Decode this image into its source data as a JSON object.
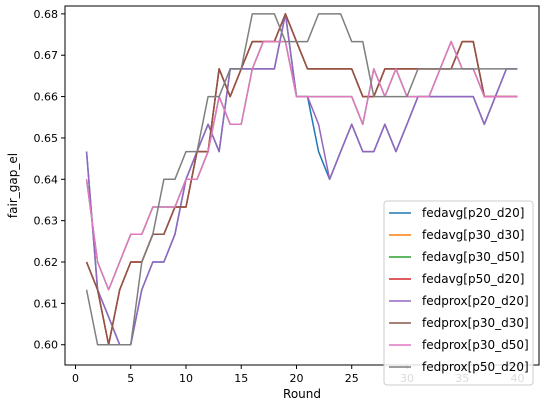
{
  "chart_data": {
    "type": "line",
    "xlabel": "Round",
    "ylabel": "fair_gap_el",
    "xlim": [
      -0.95,
      41.95
    ],
    "ylim": [
      0.5951,
      0.6819
    ],
    "xticks": [
      0,
      5,
      10,
      15,
      20,
      25,
      30,
      35,
      40
    ],
    "yticks": [
      0.6,
      0.61,
      0.62,
      0.63,
      0.64,
      0.65,
      0.66,
      0.67,
      0.68
    ],
    "ytick_labels": [
      "0.60",
      "0.61",
      "0.62",
      "0.63",
      "0.64",
      "0.65",
      "0.66",
      "0.67",
      "0.68"
    ],
    "grid": false,
    "legend_position": "lower-right",
    "x": [
      1,
      2,
      3,
      4,
      5,
      6,
      7,
      8,
      9,
      10,
      11,
      12,
      13,
      14,
      15,
      16,
      17,
      18,
      19,
      20,
      21,
      22,
      23,
      24,
      25,
      26,
      27,
      28,
      29,
      30,
      31,
      32,
      33,
      34,
      35,
      36,
      37,
      38,
      39,
      40
    ],
    "series": [
      {
        "name": "fedavg[p20_d20]",
        "color": "#1f77b4",
        "values": [
          0.6467,
          0.6133,
          0.6067,
          0.6,
          0.6,
          0.6133,
          0.62,
          0.62,
          0.6267,
          0.64,
          0.6467,
          0.6533,
          0.6467,
          0.6667,
          0.6667,
          0.6667,
          0.6667,
          0.6667,
          0.68,
          0.66,
          0.66,
          0.6467,
          0.64,
          0.6467,
          0.6533,
          0.6467,
          0.6467,
          0.6533,
          0.6467,
          0.6533,
          0.66,
          0.66,
          0.66,
          0.66,
          0.66,
          0.66,
          0.6533,
          0.66,
          0.6667,
          0.6667
        ]
      },
      {
        "name": "fedavg[p30_d30]",
        "color": "#ff7f0e",
        "values": [
          0.62,
          0.6133,
          0.6,
          0.6133,
          0.62,
          0.62,
          0.6267,
          0.6267,
          0.6333,
          0.6333,
          0.6467,
          0.6467,
          0.6667,
          0.66,
          0.6667,
          0.6733,
          0.6733,
          0.6733,
          0.68,
          0.6733,
          0.6667,
          0.6667,
          0.6667,
          0.6667,
          0.6667,
          0.66,
          0.66,
          0.6667,
          0.6667,
          0.6667,
          0.6667,
          0.6667,
          0.6667,
          0.6667,
          0.6733,
          0.6733,
          0.66,
          0.66,
          0.66,
          0.66
        ]
      },
      {
        "name": "fedavg[p30_d50]",
        "color": "#2ca02c",
        "values": [
          0.64,
          0.62,
          0.6133,
          0.62,
          0.6267,
          0.6267,
          0.6333,
          0.6333,
          0.6333,
          0.64,
          0.64,
          0.6467,
          0.66,
          0.6533,
          0.6533,
          0.6667,
          0.6733,
          0.6733,
          0.6733,
          0.66,
          0.66,
          0.66,
          0.66,
          0.66,
          0.66,
          0.6533,
          0.6667,
          0.66,
          0.6667,
          0.66,
          0.66,
          0.66,
          0.6667,
          0.6733,
          0.6667,
          0.6667,
          0.66,
          0.66,
          0.66,
          0.66
        ]
      },
      {
        "name": "fedavg[p50_d20]",
        "color": "#d62728",
        "values": [
          0.62,
          0.6133,
          0.6,
          0.6133,
          0.62,
          0.62,
          0.6267,
          0.6267,
          0.6333,
          0.6333,
          0.6467,
          0.6467,
          0.6667,
          0.66,
          0.6667,
          0.6733,
          0.6733,
          0.6733,
          0.68,
          0.6733,
          0.6667,
          0.6667,
          0.6667,
          0.6667,
          0.6667,
          0.66,
          0.66,
          0.6667,
          0.6667,
          0.6667,
          0.6667,
          0.6667,
          0.6667,
          0.6667,
          0.6733,
          0.6733,
          0.66,
          0.66,
          0.66,
          0.66
        ]
      },
      {
        "name": "fedprox[p20_d20]",
        "color": "#9467bd",
        "values": [
          0.6467,
          0.6133,
          0.6067,
          0.6,
          0.6,
          0.6133,
          0.62,
          0.62,
          0.6267,
          0.64,
          0.6467,
          0.6533,
          0.6467,
          0.6667,
          0.6667,
          0.6667,
          0.6667,
          0.6667,
          0.68,
          0.66,
          0.66,
          0.6533,
          0.64,
          0.6467,
          0.6533,
          0.6467,
          0.6467,
          0.6533,
          0.6467,
          0.6533,
          0.66,
          0.66,
          0.66,
          0.66,
          0.66,
          0.66,
          0.6533,
          0.66,
          0.6667,
          0.6667
        ]
      },
      {
        "name": "fedprox[p30_d30]",
        "color": "#8c564b",
        "values": [
          0.62,
          0.6133,
          0.6,
          0.6133,
          0.62,
          0.62,
          0.6267,
          0.6267,
          0.6333,
          0.6333,
          0.6467,
          0.6467,
          0.6667,
          0.66,
          0.6667,
          0.6733,
          0.6733,
          0.6733,
          0.68,
          0.6733,
          0.6667,
          0.6667,
          0.6667,
          0.6667,
          0.6667,
          0.66,
          0.66,
          0.6667,
          0.6667,
          0.6667,
          0.6667,
          0.6667,
          0.6667,
          0.6667,
          0.6733,
          0.6733,
          0.66,
          0.66,
          0.66,
          0.66
        ]
      },
      {
        "name": "fedprox[p30_d50]",
        "color": "#e377c2",
        "values": [
          0.64,
          0.62,
          0.6133,
          0.62,
          0.6267,
          0.6267,
          0.6333,
          0.6333,
          0.6333,
          0.64,
          0.64,
          0.6467,
          0.66,
          0.6533,
          0.6533,
          0.6667,
          0.6733,
          0.6733,
          0.6733,
          0.66,
          0.66,
          0.66,
          0.66,
          0.66,
          0.66,
          0.6533,
          0.6667,
          0.66,
          0.6667,
          0.66,
          0.66,
          0.66,
          0.6667,
          0.6733,
          0.6667,
          0.6667,
          0.66,
          0.66,
          0.66,
          0.66
        ]
      },
      {
        "name": "fedprox[p50_d20]",
        "color": "#7f7f7f",
        "values": [
          0.6133,
          0.6,
          0.6,
          0.6,
          0.6,
          0.62,
          0.6267,
          0.64,
          0.64,
          0.6467,
          0.6467,
          0.66,
          0.66,
          0.6667,
          0.6667,
          0.68,
          0.68,
          0.68,
          0.6733,
          0.6733,
          0.6733,
          0.68,
          0.68,
          0.68,
          0.6733,
          0.6733,
          0.66,
          0.66,
          0.66,
          0.66,
          0.6667,
          0.6667,
          0.6667,
          0.6667,
          0.6667,
          0.6667,
          0.6667,
          0.6667,
          0.6667,
          0.6667
        ]
      }
    ]
  }
}
